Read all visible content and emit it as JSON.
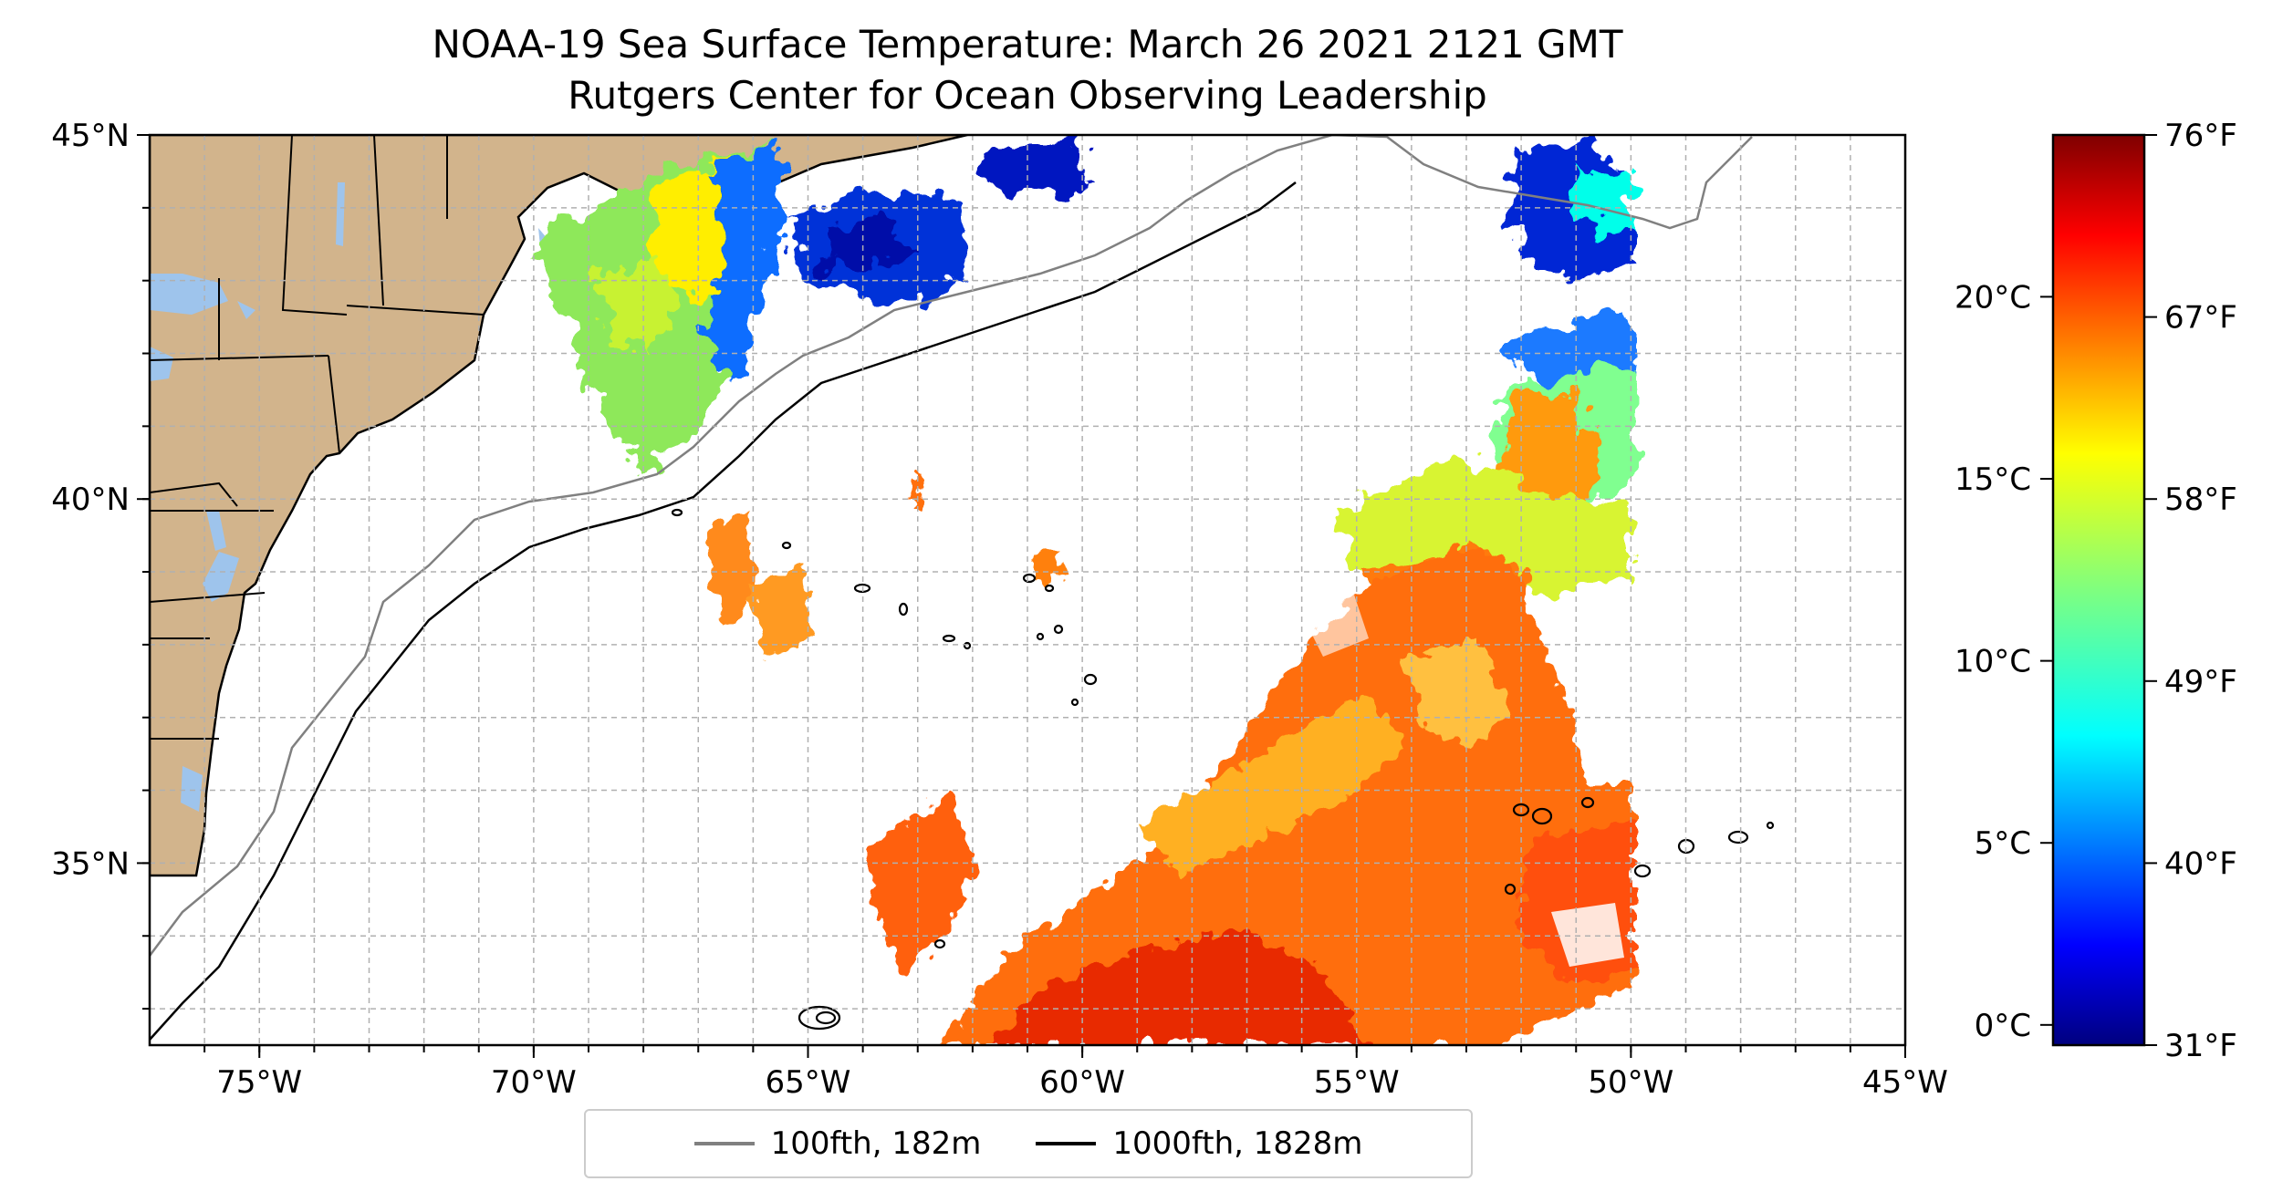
{
  "title": "NOAA-19 Sea Surface Temperature: March 26 2021 2121 GMT",
  "subtitle": "Rutgers Center for Ocean Observing Leadership",
  "map": {
    "lon_range": [
      -77,
      -45
    ],
    "lat_range": [
      32.5,
      45
    ],
    "x_ticks": [
      "75°W",
      "70°W",
      "65°W",
      "60°W",
      "55°W",
      "50°W",
      "45°W"
    ],
    "y_ticks": [
      "45°N",
      "40°N",
      "35°N"
    ],
    "land_color": "#d2b48c",
    "water_color": "#9ec4ec",
    "grid": true
  },
  "legend": {
    "items": [
      {
        "label": "100fth, 182m",
        "color": "#808080"
      },
      {
        "label": "1000fth, 1828m",
        "color": "#000000"
      }
    ]
  },
  "colorbar": {
    "colormap": "jet",
    "celsius_ticks": [
      "20°C",
      "15°C",
      "10°C",
      "5°C",
      "0°C"
    ],
    "fahrenheit_ticks": [
      "76°F",
      "67°F",
      "58°F",
      "49°F",
      "40°F",
      "31°F"
    ],
    "range_f": [
      31,
      76
    ]
  }
}
